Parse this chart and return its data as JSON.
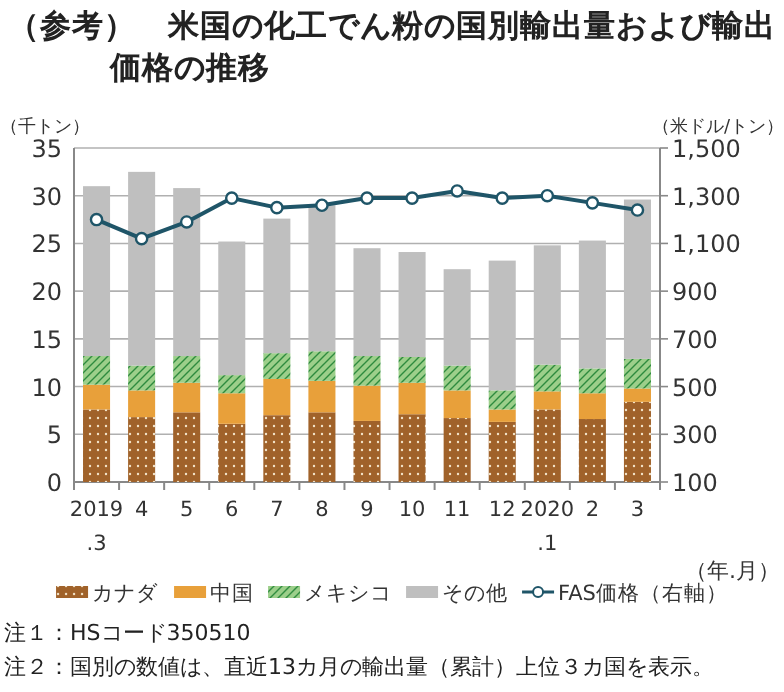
{
  "chart_data": {
    "type": "bar",
    "stacked": true,
    "title": "（参考）　米国の化工でん粉の国別輸出量および輸出価格の推移",
    "xlabel": "（年.月）",
    "ylabel": "（千トン）",
    "y2label": "（米ドル/トン）",
    "categories": [
      "2019\n.3",
      "4",
      "5",
      "6",
      "7",
      "8",
      "9",
      "10",
      "11",
      "12",
      "2020\n.1",
      "2",
      "3"
    ],
    "series": [
      {
        "name": "カナダ",
        "color": "#a0622a",
        "values": [
          7.6,
          6.8,
          7.3,
          6.1,
          7.0,
          7.3,
          6.4,
          7.1,
          6.7,
          6.3,
          7.6,
          6.6,
          8.4
        ]
      },
      {
        "name": "中国",
        "color": "#e8a03a",
        "values": [
          2.6,
          2.8,
          3.1,
          3.2,
          3.8,
          3.3,
          3.7,
          3.3,
          2.9,
          1.3,
          1.9,
          2.7,
          1.4
        ]
      },
      {
        "name": "メキシコ",
        "color": "#9ccf8a",
        "values": [
          3.0,
          2.6,
          2.8,
          1.9,
          2.7,
          3.1,
          3.1,
          2.7,
          2.6,
          2.0,
          2.8,
          2.6,
          3.1
        ]
      },
      {
        "name": "その他",
        "color": "#bfbfbf",
        "values": [
          17.8,
          20.3,
          17.6,
          14.0,
          14.1,
          15.3,
          11.3,
          11.0,
          10.1,
          13.6,
          12.5,
          13.4,
          16.7
        ]
      },
      {
        "name": "FAS価格（右軸）",
        "type": "line",
        "axis": "y2",
        "color": "#1f5568",
        "marker": "circle",
        "values": [
          1200,
          1120,
          1190,
          1290,
          1250,
          1260,
          1290,
          1290,
          1320,
          1290,
          1300,
          1270,
          1240
        ]
      }
    ],
    "ylim": [
      0,
      35
    ],
    "yticks": [
      0,
      5,
      10,
      15,
      20,
      25,
      30,
      35
    ],
    "y2lim": [
      100,
      1500
    ],
    "y2ticks": [
      {
        "value": 100,
        "label": "100"
      },
      {
        "value": 300,
        "label": "300"
      },
      {
        "value": 500,
        "label": "500"
      },
      {
        "value": 700,
        "label": "700"
      },
      {
        "value": 900,
        "label": "900"
      },
      {
        "value": 1100,
        "label": "1,100"
      },
      {
        "value": 1300,
        "label": "1,300"
      },
      {
        "value": 1500,
        "label": "1,500"
      }
    ],
    "grid": "y",
    "legend": "bottom",
    "annotations": [
      "注１：HSコード350510",
      "注２：国別の数値は、直近13カ月の輸出量（累計）上位３カ国を表示。"
    ]
  }
}
